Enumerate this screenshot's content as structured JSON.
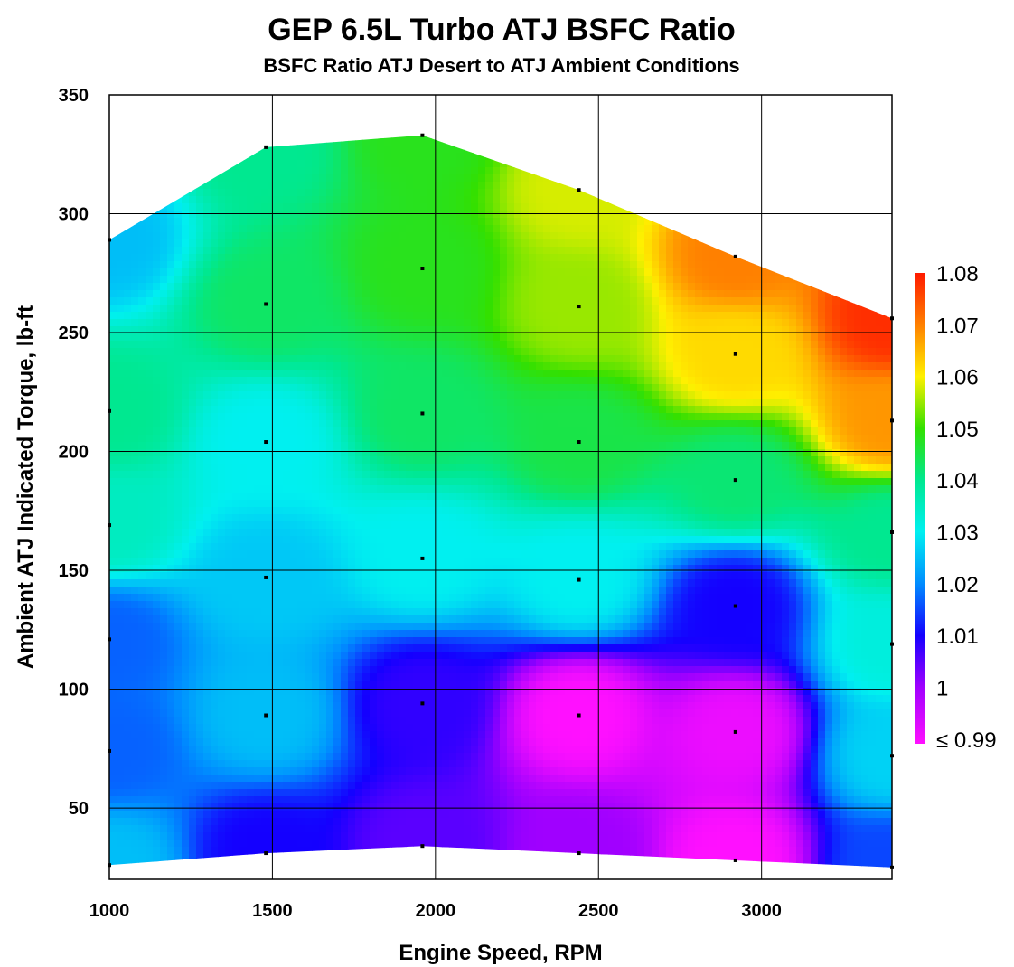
{
  "chart_data": {
    "type": "heatmap",
    "title": "GEP 6.5L Turbo ATJ BSFC Ratio",
    "subtitle": "BSFC Ratio ATJ Desert to ATJ Ambient Conditions",
    "xlabel": "Engine Speed, RPM",
    "ylabel": "Ambient ATJ Indicated Torque, lb-ft",
    "xlim": [
      1000,
      3400
    ],
    "ylim": [
      20,
      350
    ],
    "x_ticks": [
      "1000",
      "1500",
      "2000",
      "2500",
      "3000"
    ],
    "y_ticks": [
      "50",
      "100",
      "150",
      "200",
      "250",
      "300",
      "350"
    ],
    "grid": true,
    "colorbar": {
      "placement": "right",
      "min": 0.99,
      "max": 1.08,
      "labels": [
        "1.08",
        "1.07",
        "1.06",
        "1.05",
        "1.04",
        "1.03",
        "1.02",
        "1.01",
        "1",
        "≤ 0.99"
      ]
    },
    "points": [
      {
        "x": 1000,
        "y": 26,
        "v": 1.025
      },
      {
        "x": 1000,
        "y": 74,
        "v": 1.017
      },
      {
        "x": 1000,
        "y": 121,
        "v": 1.017
      },
      {
        "x": 1000,
        "y": 169,
        "v": 1.035
      },
      {
        "x": 1000,
        "y": 217,
        "v": 1.04
      },
      {
        "x": 1000,
        "y": 289,
        "v": 1.025
      },
      {
        "x": 1480,
        "y": 31,
        "v": 1.01
      },
      {
        "x": 1480,
        "y": 89,
        "v": 1.025
      },
      {
        "x": 1480,
        "y": 147,
        "v": 1.026
      },
      {
        "x": 1480,
        "y": 204,
        "v": 1.03
      },
      {
        "x": 1480,
        "y": 262,
        "v": 1.043
      },
      {
        "x": 1480,
        "y": 328,
        "v": 1.04
      },
      {
        "x": 1960,
        "y": 34,
        "v": 1.005
      },
      {
        "x": 1960,
        "y": 94,
        "v": 1.008
      },
      {
        "x": 1960,
        "y": 155,
        "v": 1.03
      },
      {
        "x": 1960,
        "y": 216,
        "v": 1.043
      },
      {
        "x": 1960,
        "y": 277,
        "v": 1.048
      },
      {
        "x": 1960,
        "y": 333,
        "v": 1.048
      },
      {
        "x": 2440,
        "y": 31,
        "v": 1.0
      },
      {
        "x": 2440,
        "y": 89,
        "v": 0.99
      },
      {
        "x": 2440,
        "y": 146,
        "v": 1.03
      },
      {
        "x": 2440,
        "y": 204,
        "v": 1.045
      },
      {
        "x": 2440,
        "y": 261,
        "v": 1.055
      },
      {
        "x": 2440,
        "y": 310,
        "v": 1.058
      },
      {
        "x": 2920,
        "y": 28,
        "v": 0.99
      },
      {
        "x": 2920,
        "y": 82,
        "v": 0.992
      },
      {
        "x": 2920,
        "y": 135,
        "v": 1.01
      },
      {
        "x": 2920,
        "y": 188,
        "v": 1.042
      },
      {
        "x": 2920,
        "y": 241,
        "v": 1.062
      },
      {
        "x": 2920,
        "y": 282,
        "v": 1.07
      },
      {
        "x": 3400,
        "y": 25,
        "v": 1.015
      },
      {
        "x": 3400,
        "y": 72,
        "v": 1.027
      },
      {
        "x": 3400,
        "y": 119,
        "v": 1.032
      },
      {
        "x": 3400,
        "y": 166,
        "v": 1.04
      },
      {
        "x": 3400,
        "y": 213,
        "v": 1.068
      },
      {
        "x": 3400,
        "y": 256,
        "v": 1.078
      }
    ]
  }
}
